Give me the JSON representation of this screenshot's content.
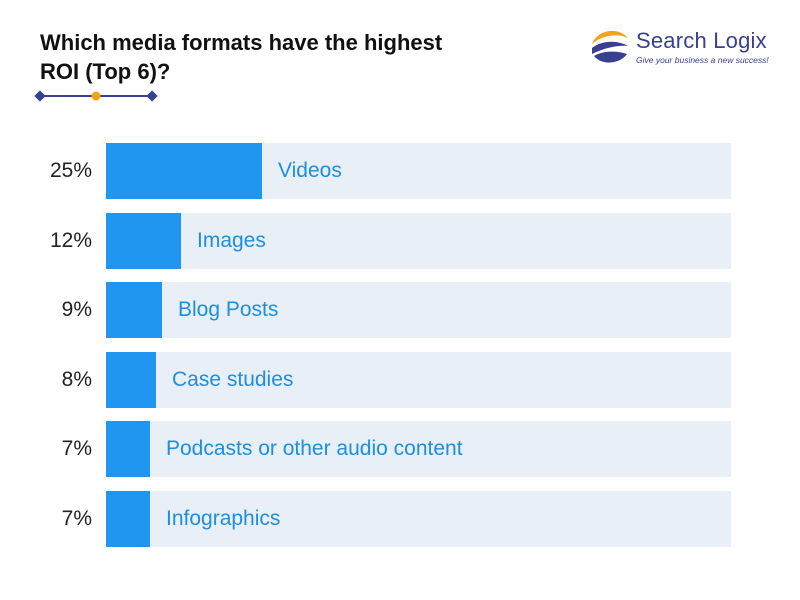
{
  "title_lines": [
    "Which media formats have the highest",
    "ROI (Top 6)?"
  ],
  "brand": {
    "name": "Search Logix",
    "tagline": "Give your business a new success!",
    "colors": {
      "navy": "#3a4090",
      "orange": "#f3a21b",
      "bar": "#2196f0",
      "track": "#e8eff6",
      "label": "#1e8ede"
    }
  },
  "chart_data": {
    "type": "bar",
    "orientation": "horizontal",
    "title": "Which media formats have the highest ROI (Top 6)?",
    "categories": [
      "Videos",
      "Images",
      "Blog Posts",
      "Case studies",
      "Podcasts or other audio content",
      "Infographics"
    ],
    "values": [
      25,
      12,
      9,
      8,
      7,
      7
    ],
    "value_labels": [
      "25%",
      "12%",
      "9%",
      "8%",
      "7%",
      "7%"
    ],
    "unit": "%",
    "xlim": [
      0,
      100
    ],
    "grid": false,
    "legend": "none"
  }
}
